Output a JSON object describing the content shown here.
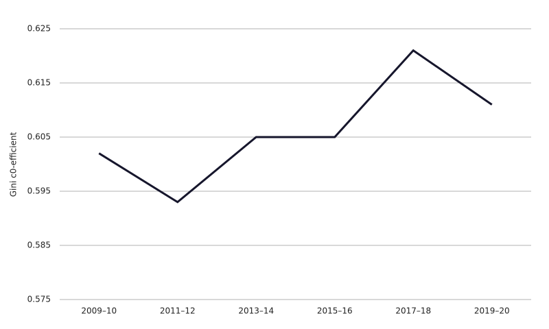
{
  "chart_data": {
    "type": "line",
    "y_label": "Gini c0-efficient",
    "categories": [
      "2009–10",
      "2011–12",
      "2013–14",
      "2015–16",
      "2017–18",
      "2019–20"
    ],
    "values": [
      0.602,
      0.593,
      0.605,
      0.605,
      0.621,
      0.611
    ],
    "color": "#16162c",
    "ylim": [
      0.575,
      0.625
    ],
    "yticks": [
      0.575,
      0.585,
      0.595,
      0.605,
      0.615,
      0.625
    ],
    "grid": true
  }
}
